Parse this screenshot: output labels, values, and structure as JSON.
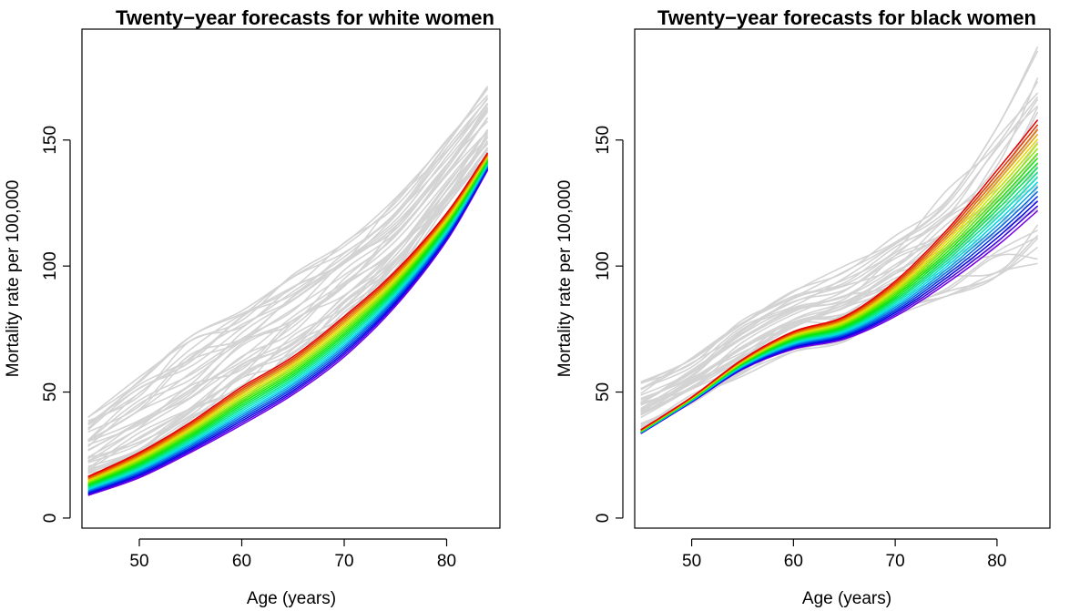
{
  "chart_data": [
    {
      "type": "line",
      "title": "Twenty−year forecasts for white women",
      "xlabel": "Age (years)",
      "ylabel": "Mortality rate per 100,000",
      "xlim": [
        44.4,
        85.2
      ],
      "ylim": [
        -4,
        194
      ],
      "x_ticks": [
        50,
        60,
        70,
        80
      ],
      "y_ticks": [
        0,
        50,
        100,
        150
      ],
      "x_tick_labels": [
        "50",
        "60",
        "70",
        "80"
      ],
      "y_tick_labels": [
        "0",
        "50",
        "100",
        "150"
      ],
      "grid": false,
      "legend": "none",
      "x": [
        45,
        50,
        55,
        60,
        65,
        70,
        75,
        80,
        84
      ],
      "historical": {
        "color": "#d3d3d3",
        "count": 36,
        "low": [
          15,
          22,
          33,
          46,
          60,
          77,
          96,
          122,
          142
        ],
        "high": [
          40,
          57,
          72,
          85,
          97,
          110,
          128,
          150,
          172
        ]
      },
      "forecast": {
        "count": 20,
        "palette": "rainbow (red = first forecast year, violet = last)",
        "first": [
          16.5,
          26,
          38,
          52,
          64,
          80,
          98,
          121,
          145
        ],
        "last": [
          9,
          16,
          26,
          37,
          49,
          64,
          84,
          110,
          138
        ]
      }
    },
    {
      "type": "line",
      "title": "Twenty−year forecasts for black women",
      "xlabel": "Age (years)",
      "ylabel": "Mortality rate per 100,000",
      "xlim": [
        44.4,
        85.2
      ],
      "ylim": [
        -4,
        194
      ],
      "x_ticks": [
        50,
        60,
        70,
        80
      ],
      "y_ticks": [
        0,
        50,
        100,
        150
      ],
      "x_tick_labels": [
        "50",
        "60",
        "70",
        "80"
      ],
      "y_tick_labels": [
        "0",
        "50",
        "100",
        "150"
      ],
      "grid": false,
      "legend": "none",
      "x": [
        45,
        50,
        55,
        60,
        65,
        70,
        75,
        80,
        84
      ],
      "historical": {
        "color": "#d3d3d3",
        "count": 36,
        "low": [
          34,
          45,
          56,
          66,
          70,
          80,
          88,
          96,
          101
        ],
        "high": [
          54,
          65,
          80,
          92,
          100,
          112,
          130,
          155,
          187
        ]
      },
      "forecast": {
        "count": 20,
        "palette": "rainbow (red = first forecast year, violet = last)",
        "first": [
          35,
          48,
          63,
          74,
          80,
          94,
          114,
          138,
          158
        ],
        "last": [
          33.5,
          46,
          59,
          67,
          71,
          80,
          93,
          108,
          122
        ]
      }
    }
  ]
}
